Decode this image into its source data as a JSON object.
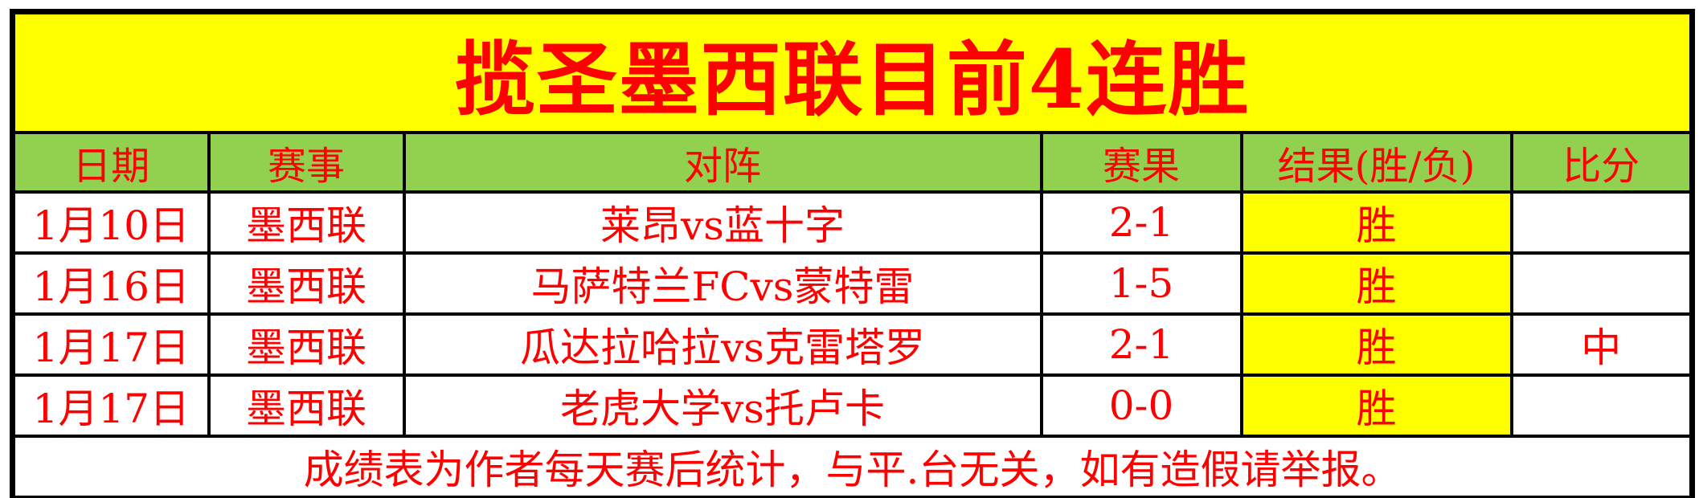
{
  "title": "揽圣墨西联目前4连胜",
  "colors": {
    "banner_bg": "#ffff00",
    "header_bg": "#92d050",
    "result_bg": "#ffff00",
    "text_red": "#ff0000",
    "border_black": "#000000"
  },
  "table": {
    "headers": {
      "date": "日期",
      "league": "赛事",
      "match": "对阵",
      "score": "赛果",
      "result": "结果(胜/负)",
      "bifen": "比分"
    },
    "rows": [
      {
        "date": "1月10日",
        "league": "墨西联",
        "match": "莱昂vs蓝十字",
        "score": "2-1",
        "result": "胜",
        "bifen": ""
      },
      {
        "date": "1月16日",
        "league": "墨西联",
        "match": "马萨特兰FCvs蒙特雷",
        "score": "1-5",
        "result": "胜",
        "bifen": ""
      },
      {
        "date": "1月17日",
        "league": "墨西联",
        "match": "瓜达拉哈拉vs克雷塔罗",
        "score": "2-1",
        "result": "胜",
        "bifen": "中"
      },
      {
        "date": "1月17日",
        "league": "墨西联",
        "match": "老虎大学vs托卢卡",
        "score": "0-0",
        "result": "胜",
        "bifen": ""
      }
    ],
    "footer": "成绩表为作者每天赛后统计，与平.台无关，如有造假请举报。"
  }
}
